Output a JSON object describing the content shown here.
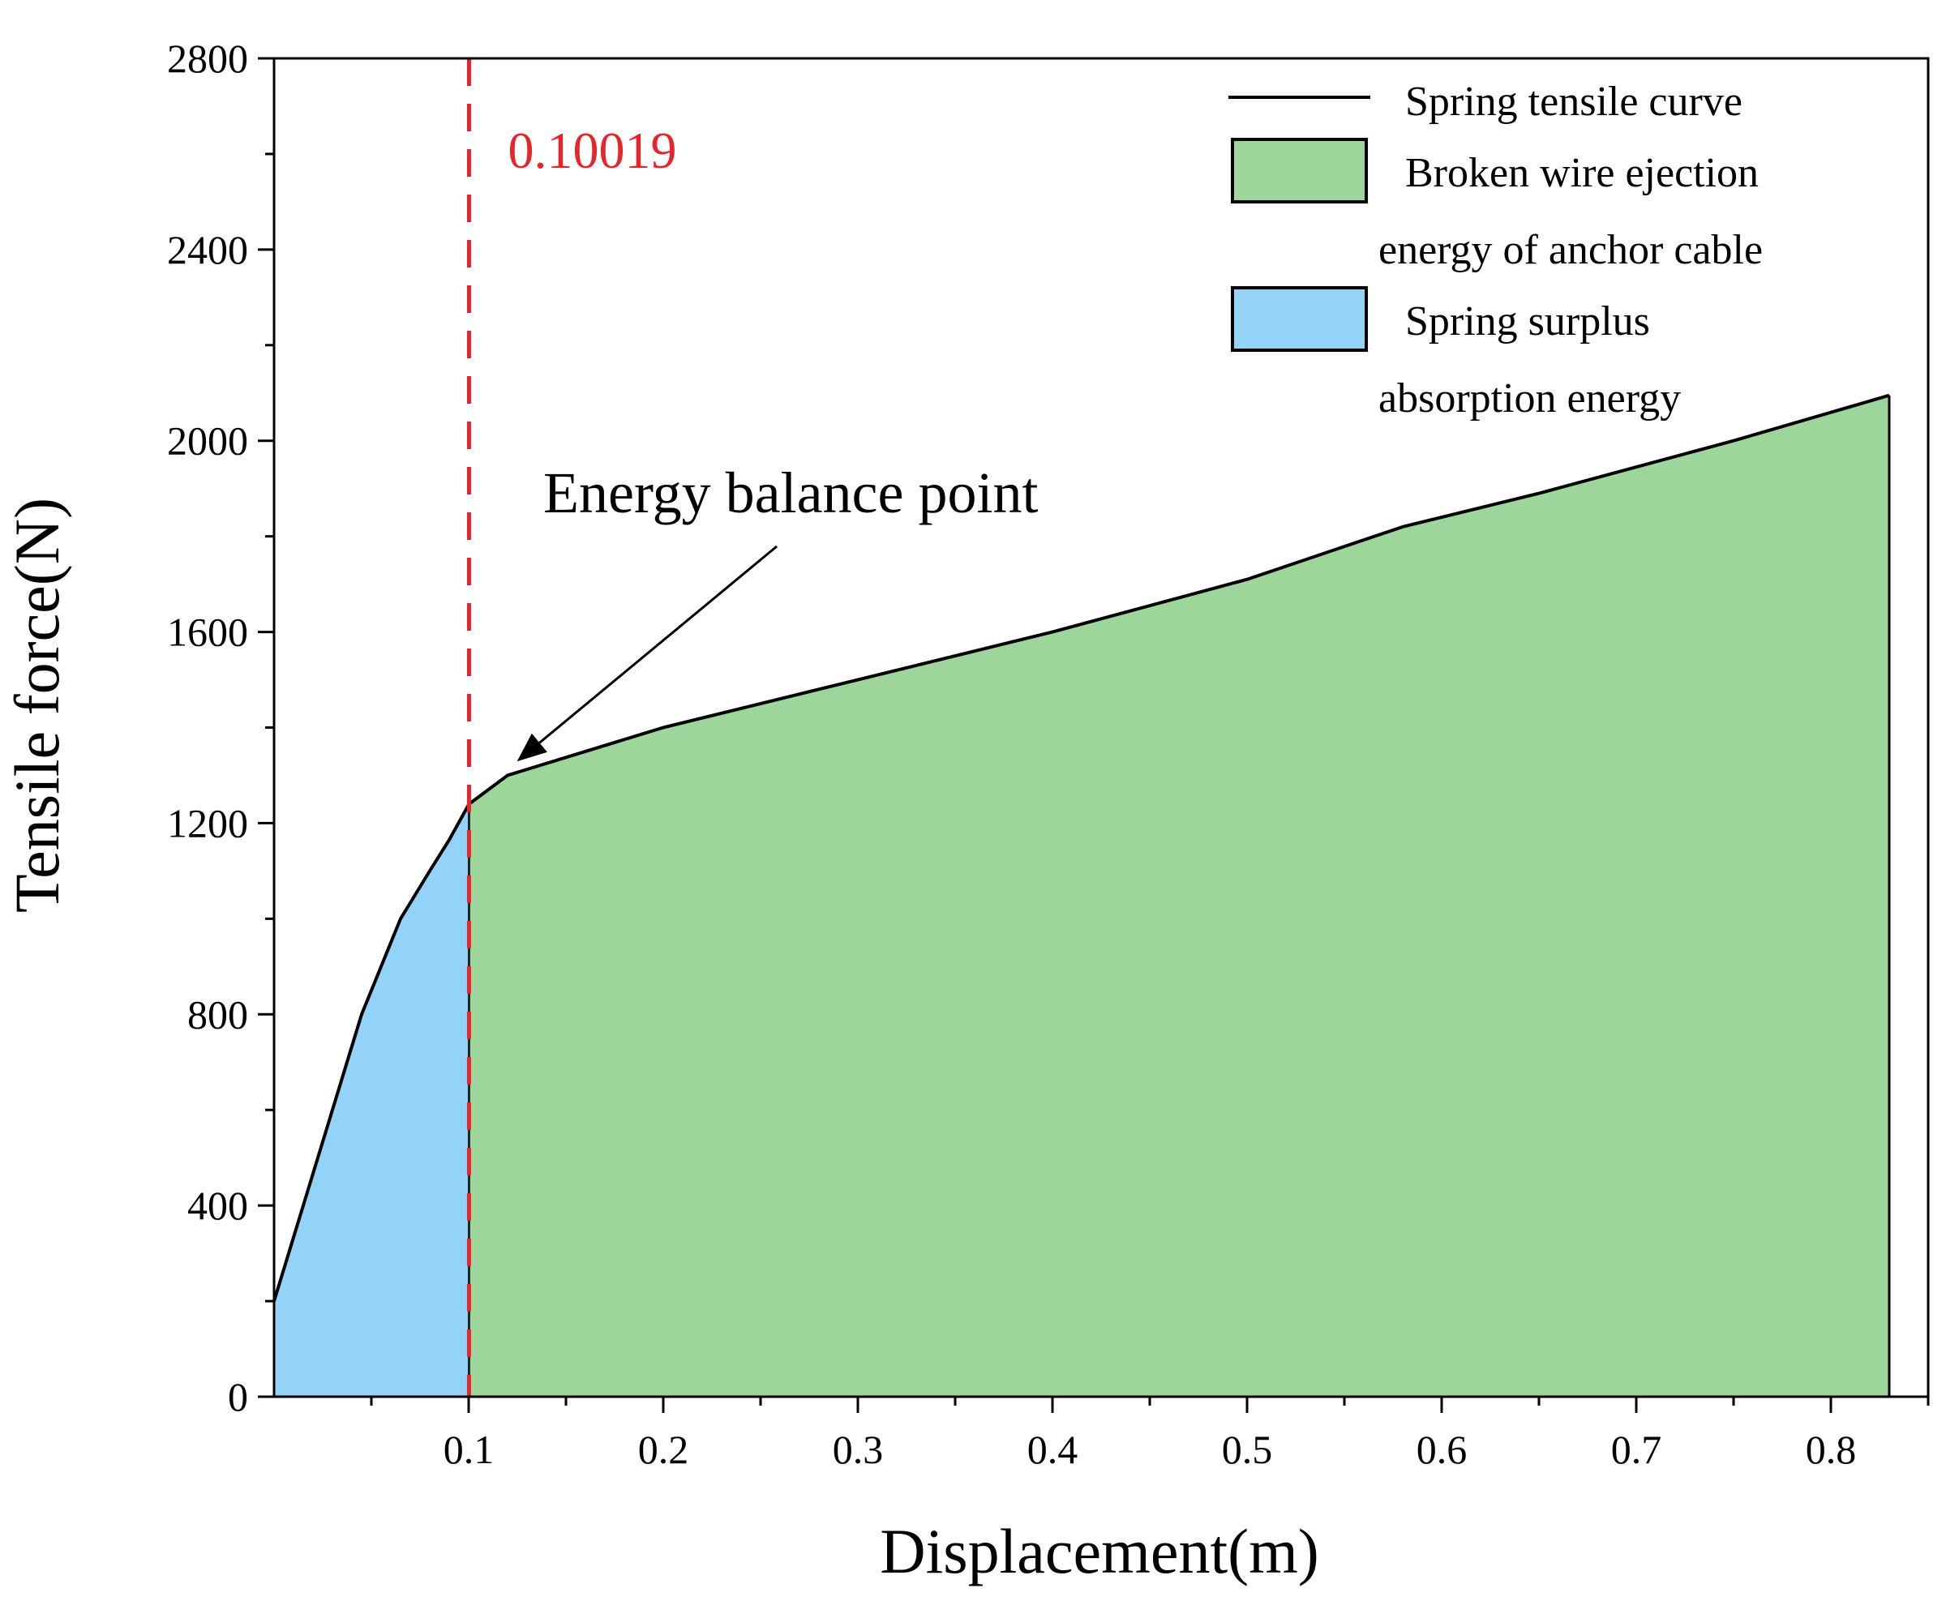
{
  "chart_data": {
    "type": "area",
    "xlabel": "Displacement(m)",
    "ylabel": "Tensile force(N)",
    "xlim": [
      0.0,
      0.85
    ],
    "ylim": [
      0,
      2800
    ],
    "x_ticks": [
      0.1,
      0.2,
      0.3,
      0.4,
      0.5,
      0.6,
      0.7,
      0.8
    ],
    "x_tick_labels": [
      "0.1",
      "0.2",
      "0.3",
      "0.4",
      "0.5",
      "0.6",
      "0.7",
      "0.8"
    ],
    "y_ticks": [
      0,
      400,
      800,
      1200,
      1600,
      2000,
      2400,
      2800
    ],
    "y_tick_labels": [
      "0",
      "400",
      "800",
      "1200",
      "1600",
      "2000",
      "2400",
      "2800"
    ],
    "series": [
      {
        "name": "Spring tensile curve",
        "x": [
          0.0,
          0.03,
          0.045,
          0.055,
          0.065,
          0.08,
          0.09,
          0.10019,
          0.12,
          0.2,
          0.3,
          0.4,
          0.5,
          0.58,
          0.65,
          0.75,
          0.83
        ],
        "y": [
          200,
          600,
          800,
          900,
          1000,
          1100,
          1165,
          1240,
          1300,
          1400,
          1500,
          1600,
          1710,
          1820,
          1890,
          2000,
          2095
        ]
      }
    ],
    "regions": [
      {
        "name": "Spring surplus absorption energy",
        "x_from": 0.0,
        "x_to": 0.10019,
        "color": "#93d3f7"
      },
      {
        "name": "Broken wire ejection energy of anchor cable",
        "x_from": 0.10019,
        "x_to": 0.83,
        "color": "#9dd59a"
      }
    ],
    "vertical_line": {
      "x": 0.10019,
      "label": "0.10019",
      "color": "#e8242b"
    },
    "annotation": {
      "text": "Energy balance point",
      "arrow_to_x": 0.12,
      "arrow_to_y": 1380
    },
    "legend": {
      "placement": "top-right",
      "entries": [
        {
          "kind": "line",
          "lines": [
            "Spring tensile curve"
          ]
        },
        {
          "kind": "patch",
          "color": "#9dd59a",
          "lines": [
            "Broken wire ejection",
            "energy of anchor cable"
          ]
        },
        {
          "kind": "patch",
          "color": "#93d3f7",
          "lines": [
            "Spring surplus",
            "absorption energy"
          ]
        }
      ]
    }
  }
}
